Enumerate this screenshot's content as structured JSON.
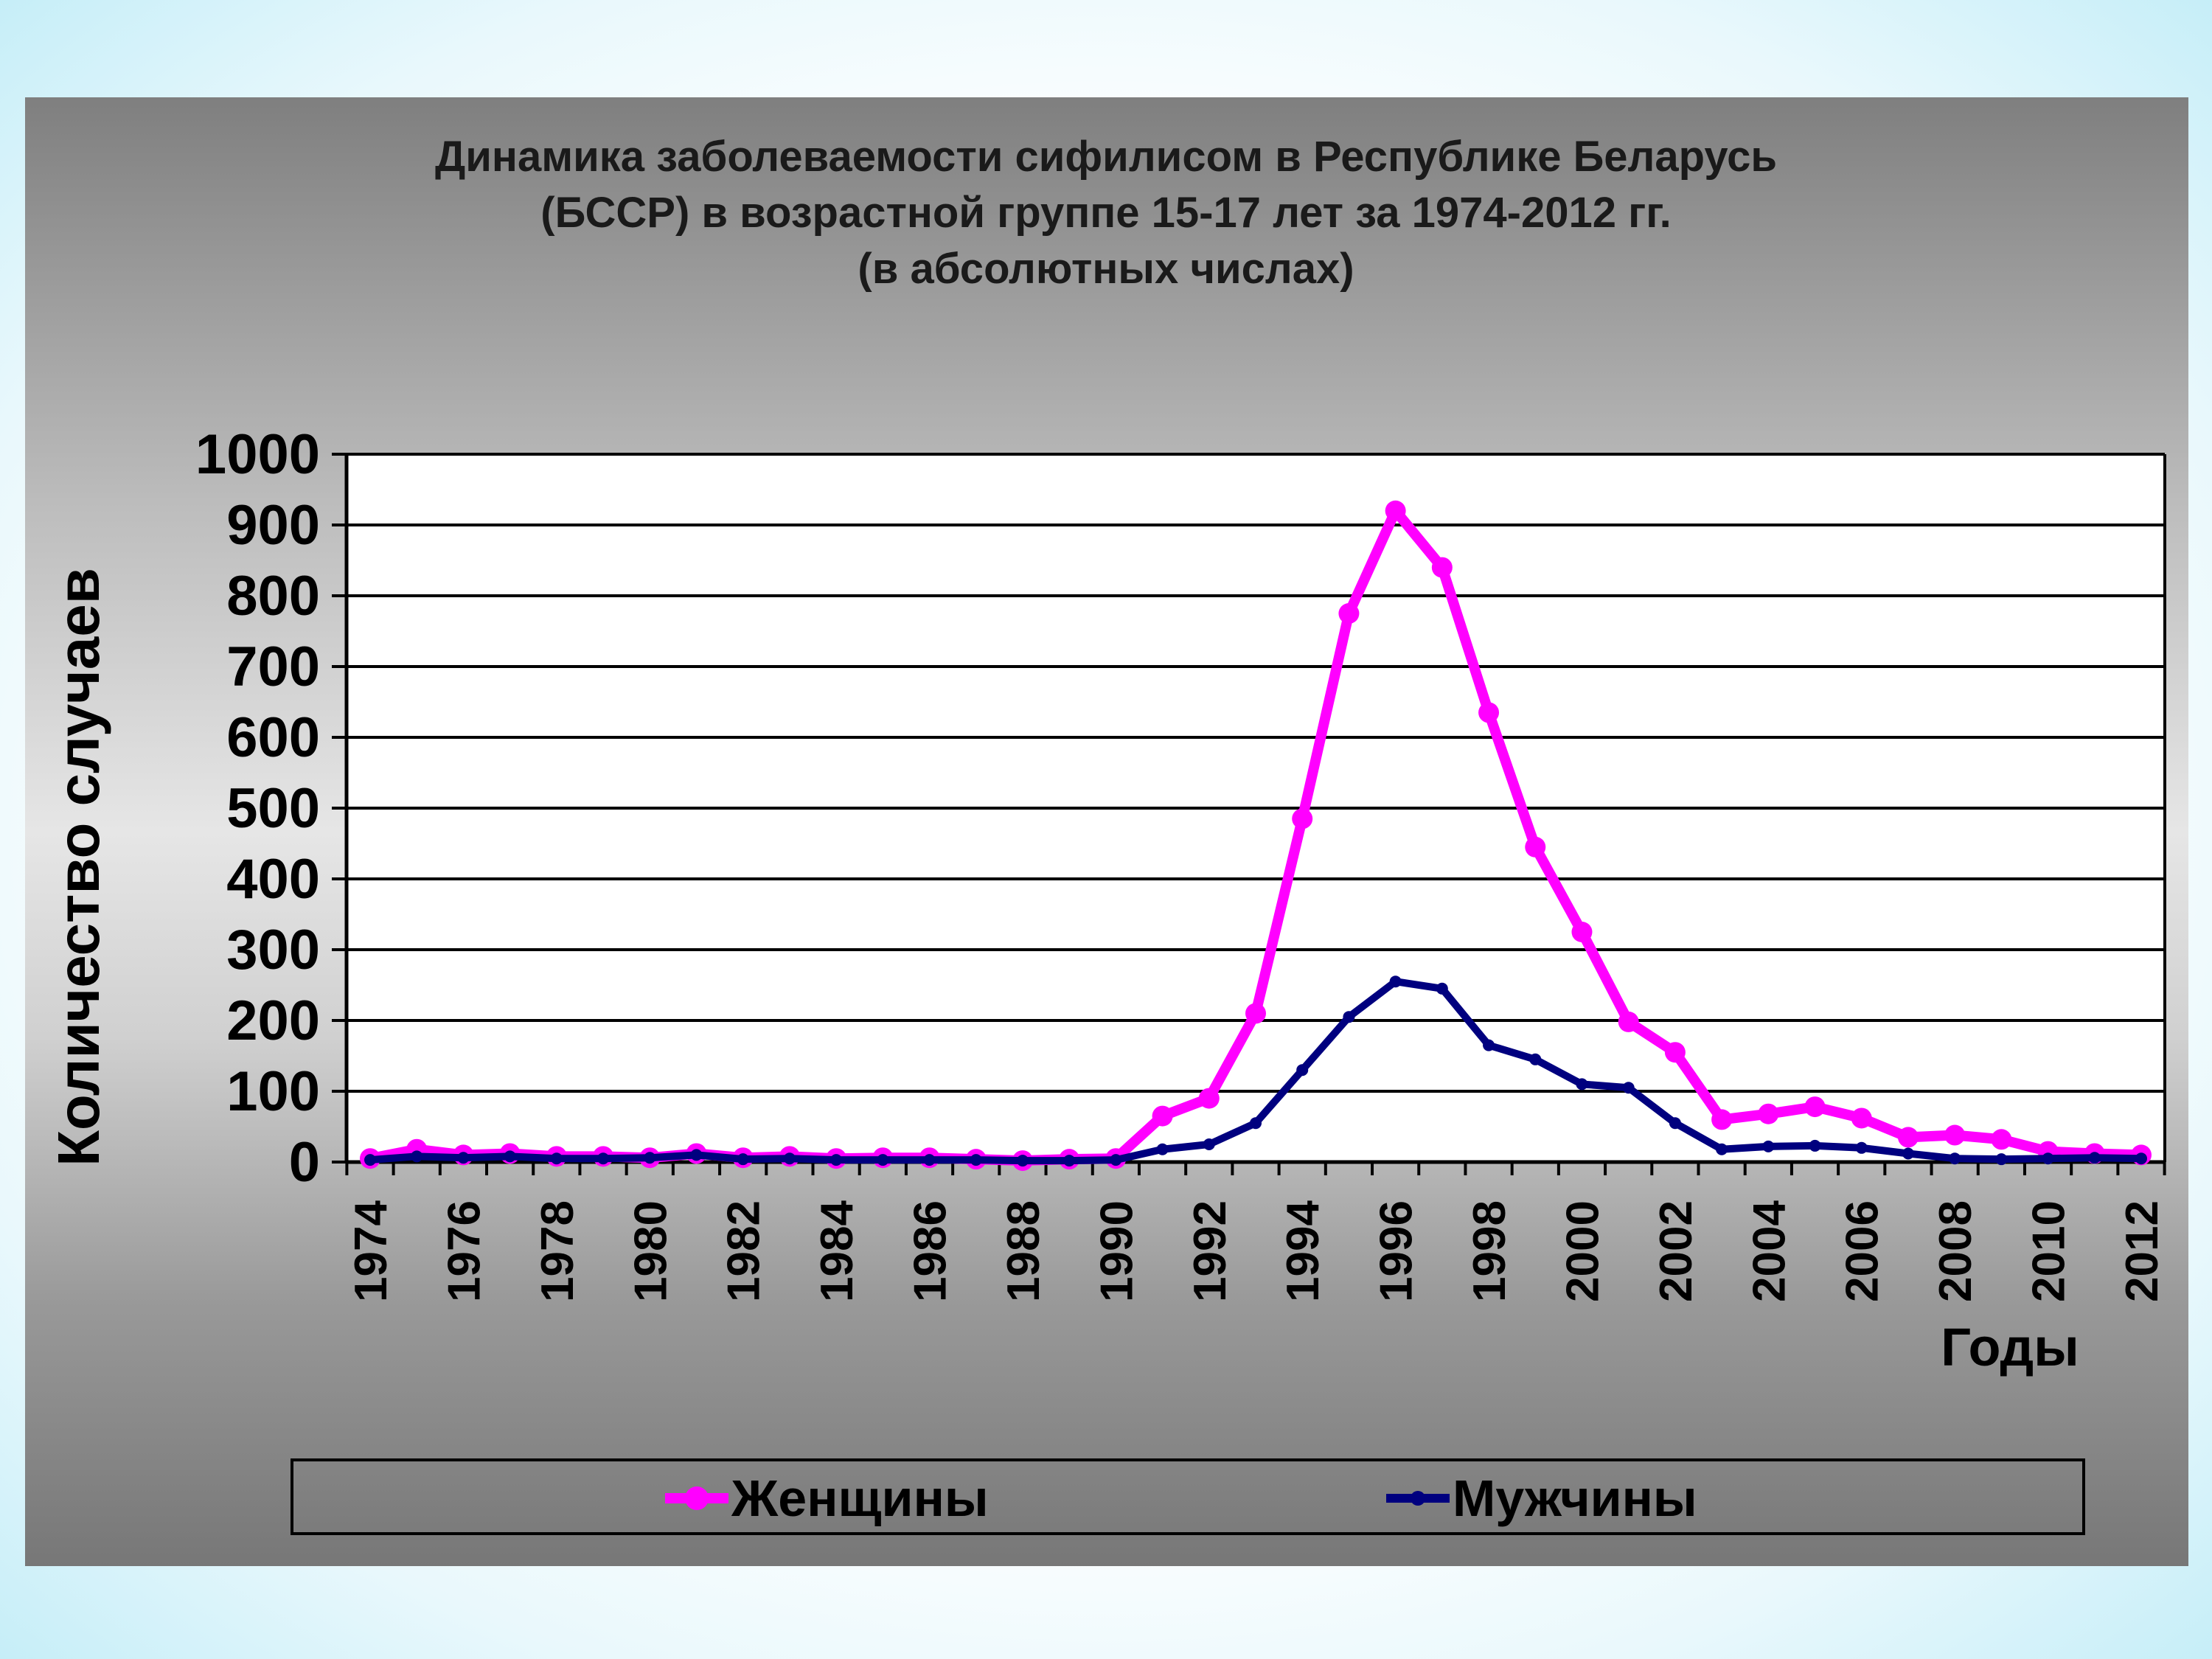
{
  "chart_data": {
    "type": "line",
    "title": "Динамика заболеваемости сифилисом в Республике Беларусь\n(БССР) в возрастной группе 15-17 лет за 1974-2012 гг.\n(в абсолютных числах)",
    "xlabel": "Годы",
    "ylabel": "Количество случаев",
    "ylim": [
      0,
      1000
    ],
    "yticks": [
      "0",
      "100",
      "200",
      "300",
      "400",
      "500",
      "600",
      "700",
      "800",
      "900",
      "1000"
    ],
    "xtick_labels": [
      "1974",
      "1976",
      "1978",
      "1980",
      "1982",
      "1984",
      "1986",
      "1988",
      "1990",
      "1992",
      "1994",
      "1996",
      "1998",
      "2000",
      "2002",
      "2004",
      "2006",
      "2008",
      "2010",
      "2012"
    ],
    "x": [
      1974,
      1975,
      1976,
      1977,
      1978,
      1979,
      1980,
      1981,
      1982,
      1983,
      1984,
      1985,
      1986,
      1987,
      1988,
      1989,
      1990,
      1991,
      1992,
      1993,
      1994,
      1995,
      1996,
      1997,
      1998,
      1999,
      2000,
      2001,
      2002,
      2003,
      2004,
      2005,
      2006,
      2007,
      2008,
      2009,
      2010,
      2011,
      2012
    ],
    "series": [
      {
        "name": "Женщины",
        "color": "#ff00ff",
        "values": [
          5,
          18,
          10,
          12,
          8,
          8,
          6,
          12,
          6,
          8,
          5,
          6,
          6,
          4,
          2,
          4,
          5,
          65,
          90,
          210,
          485,
          775,
          920,
          840,
          635,
          445,
          325,
          198,
          155,
          60,
          68,
          78,
          62,
          35,
          38,
          32,
          15,
          12,
          10
        ]
      },
      {
        "name": "Мужчины",
        "color": "#00007f",
        "values": [
          3,
          8,
          6,
          8,
          5,
          5,
          6,
          10,
          4,
          5,
          3,
          3,
          3,
          3,
          2,
          2,
          3,
          18,
          25,
          55,
          130,
          205,
          255,
          245,
          165,
          145,
          110,
          105,
          55,
          18,
          22,
          23,
          20,
          12,
          5,
          4,
          5,
          6,
          5
        ]
      }
    ],
    "grid": true,
    "legend_position": "bottom"
  }
}
